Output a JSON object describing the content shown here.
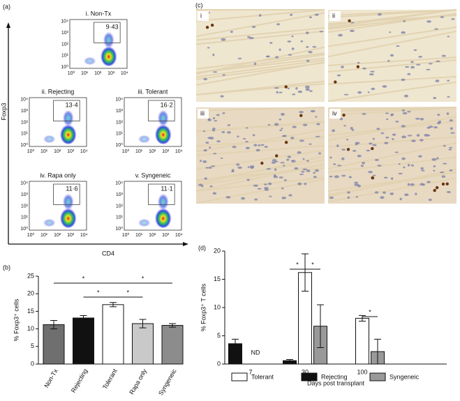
{
  "panel_labels": [
    "(a)",
    "(b)",
    "(c)",
    "(d)"
  ],
  "flow_panel": {
    "y_label": "Foxp3",
    "x_label": "CD4",
    "ticks": [
      "10⁰",
      "10¹",
      "10²",
      "10³",
      "10⁴"
    ],
    "plots": [
      {
        "title": "i. Non-Tx",
        "gate": "9·43"
      },
      {
        "title": "ii. Rejecting",
        "gate": "13·4"
      },
      {
        "title": "iii. Tolerant",
        "gate": "16·2"
      },
      {
        "title": "iv. Rapa only",
        "gate": "11·6"
      },
      {
        "title": "v. Syngeneic",
        "gate": "11·1"
      }
    ]
  },
  "histology_panel": {
    "images": [
      "i",
      "ii",
      "iii",
      "iv"
    ]
  },
  "chart_data": [
    {
      "type": "bar",
      "y_label": "% Foxp3⁺ cells",
      "categories": [
        "Non-Tx",
        "Rejecting",
        "Tolerant",
        "Rapa only",
        "Syngeneic"
      ],
      "values": [
        11.2,
        13.1,
        16.9,
        11.5,
        11.0
      ],
      "errors": [
        1.2,
        0.7,
        0.6,
        1.2,
        0.5
      ],
      "colors": [
        "#6f6f6f",
        "#111111",
        "#ffffff",
        "#c9c9c9",
        "#8c8c8c"
      ],
      "ylim": [
        0,
        25
      ],
      "yticks": [
        0,
        5,
        10,
        15,
        20,
        25
      ],
      "annotations": [
        "*",
        "*",
        "*",
        "*"
      ]
    },
    {
      "type": "grouped-bar",
      "y_label": "% Foxp3⁺ T cells",
      "x_label": "Days post transplant",
      "categories": [
        "7",
        "30",
        "100"
      ],
      "series": [
        {
          "name": "Tolerant",
          "color": "#ffffff",
          "values": [
            null,
            16.2,
            8.1
          ],
          "errors": [
            null,
            3.3,
            0.5
          ]
        },
        {
          "name": "Rejecting",
          "color": "#111111",
          "values": [
            3.6,
            0.6,
            null
          ],
          "errors": [
            0.8,
            0.2,
            null
          ]
        },
        {
          "name": "Syngeneic",
          "color": "#999999",
          "values": [
            null,
            6.7,
            2.2
          ],
          "errors": [
            null,
            3.8,
            2.2
          ]
        }
      ],
      "ylim": [
        0,
        20
      ],
      "yticks": [
        0,
        5,
        10,
        15,
        20
      ],
      "annotations": [
        "ND",
        "*",
        "*",
        "*"
      ]
    }
  ]
}
